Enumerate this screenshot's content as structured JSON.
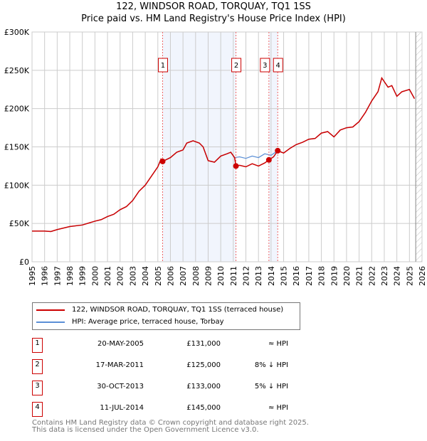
{
  "title": "122, WINDSOR ROAD, TORQUAY, TQ1 1SS",
  "subtitle": "Price paid vs. HM Land Registry's House Price Index (HPI)",
  "chart_data": {
    "type": "line",
    "title": "122, WINDSOR ROAD, TORQUAY, TQ1 1SS — Price paid vs. HM Land Registry's House Price Index (HPI)",
    "xlim": [
      1995,
      2026
    ],
    "ylim": [
      0,
      300000
    ],
    "y_ticks": [
      {
        "v": 0,
        "label": "£0"
      },
      {
        "v": 50000,
        "label": "£50K"
      },
      {
        "v": 100000,
        "label": "£100K"
      },
      {
        "v": 150000,
        "label": "£150K"
      },
      {
        "v": 200000,
        "label": "£200K"
      },
      {
        "v": 250000,
        "label": "£250K"
      },
      {
        "v": 300000,
        "label": "£300K"
      }
    ],
    "x_ticks": [
      "1995",
      "1996",
      "1997",
      "1998",
      "1999",
      "2000",
      "2001",
      "2002",
      "2003",
      "2004",
      "2005",
      "2006",
      "2007",
      "2008",
      "2009",
      "2010",
      "2011",
      "2012",
      "2013",
      "2014",
      "2015",
      "2016",
      "2017",
      "2018",
      "2019",
      "2020",
      "2021",
      "2022",
      "2023",
      "2024",
      "2025",
      "2026"
    ],
    "grid": true,
    "shaded_ranges": [
      [
        2005.38,
        2011.21
      ],
      [
        2013.83,
        2014.53
      ]
    ],
    "future_hatch_from": 2025.5,
    "colors": {
      "property": "#cc0000",
      "hpi": "#5b8fd6"
    },
    "series": [
      {
        "name": "122, WINDSOR ROAD, TORQUAY, TQ1 1SS (terraced house)",
        "color": "#cc0000",
        "points": [
          [
            1995,
            40
          ],
          [
            1996,
            40
          ],
          [
            1996.5,
            39.5
          ],
          [
            1997,
            42
          ],
          [
            1998,
            46
          ],
          [
            1999,
            48
          ],
          [
            2000,
            53
          ],
          [
            2000.5,
            55
          ],
          [
            2001,
            59
          ],
          [
            2001.5,
            62
          ],
          [
            2002,
            68
          ],
          [
            2002.5,
            72
          ],
          [
            2003,
            80
          ],
          [
            2003.5,
            92
          ],
          [
            2004,
            100
          ],
          [
            2004.5,
            112
          ],
          [
            2005,
            124
          ],
          [
            2005.25,
            134
          ],
          [
            2005.38,
            131
          ],
          [
            2006,
            136
          ],
          [
            2006.5,
            143
          ],
          [
            2007,
            146
          ],
          [
            2007.3,
            155
          ],
          [
            2007.8,
            158
          ],
          [
            2008.3,
            155
          ],
          [
            2008.6,
            150
          ],
          [
            2009,
            132
          ],
          [
            2009.5,
            130
          ],
          [
            2010,
            138
          ],
          [
            2010.5,
            141
          ],
          [
            2010.8,
            143
          ],
          [
            2011.1,
            136
          ],
          [
            2011.21,
            125
          ],
          [
            2011.5,
            126
          ],
          [
            2012,
            124
          ],
          [
            2012.5,
            128
          ],
          [
            2013,
            125
          ],
          [
            2013.5,
            129
          ],
          [
            2013.83,
            133
          ],
          [
            2014.2,
            137
          ],
          [
            2014.53,
            145
          ],
          [
            2015,
            142
          ],
          [
            2015.5,
            148
          ],
          [
            2016,
            153
          ],
          [
            2016.5,
            156
          ],
          [
            2017,
            160
          ],
          [
            2017.5,
            161
          ],
          [
            2018,
            168
          ],
          [
            2018.5,
            170
          ],
          [
            2019,
            163
          ],
          [
            2019.5,
            172
          ],
          [
            2020,
            175
          ],
          [
            2020.5,
            176
          ],
          [
            2021,
            183
          ],
          [
            2021.5,
            195
          ],
          [
            2022,
            210
          ],
          [
            2022.5,
            222
          ],
          [
            2022.8,
            240
          ],
          [
            2023.3,
            228
          ],
          [
            2023.6,
            230
          ],
          [
            2024,
            216
          ],
          [
            2024.4,
            222
          ],
          [
            2025,
            225
          ],
          [
            2025.4,
            213
          ]
        ]
      },
      {
        "name": "HPI: Average price, terraced house, Torbay",
        "color": "#5b8fd6",
        "points": [
          [
            1995,
            40
          ],
          [
            1996,
            40
          ],
          [
            1996.5,
            39.5
          ],
          [
            1997,
            42
          ],
          [
            1998,
            46
          ],
          [
            1999,
            48
          ],
          [
            2000,
            53
          ],
          [
            2000.5,
            55
          ],
          [
            2001,
            59
          ],
          [
            2001.5,
            62
          ],
          [
            2002,
            68
          ],
          [
            2002.5,
            72
          ],
          [
            2003,
            80
          ],
          [
            2003.5,
            92
          ],
          [
            2004,
            100
          ],
          [
            2004.5,
            112
          ],
          [
            2005,
            124
          ],
          [
            2005.25,
            134
          ],
          [
            2005.38,
            131
          ],
          [
            2006,
            136
          ],
          [
            2006.5,
            143
          ],
          [
            2007,
            146
          ],
          [
            2007.3,
            155
          ],
          [
            2007.8,
            158
          ],
          [
            2008.3,
            155
          ],
          [
            2008.6,
            150
          ],
          [
            2009,
            132
          ],
          [
            2009.5,
            130
          ],
          [
            2010,
            138
          ],
          [
            2010.5,
            141
          ],
          [
            2010.8,
            143
          ],
          [
            2011.1,
            136
          ],
          [
            2011.5,
            137
          ],
          [
            2012,
            135
          ],
          [
            2012.5,
            138
          ],
          [
            2013,
            136
          ],
          [
            2013.5,
            141
          ],
          [
            2014,
            139
          ],
          [
            2014.53,
            145
          ],
          [
            2015,
            142
          ],
          [
            2015.5,
            148
          ],
          [
            2016,
            153
          ],
          [
            2016.5,
            156
          ],
          [
            2017,
            160
          ],
          [
            2017.5,
            161
          ],
          [
            2018,
            168
          ],
          [
            2018.5,
            170
          ],
          [
            2019,
            163
          ],
          [
            2019.5,
            172
          ],
          [
            2020,
            175
          ],
          [
            2020.5,
            176
          ],
          [
            2021,
            183
          ],
          [
            2021.5,
            195
          ],
          [
            2022,
            210
          ],
          [
            2022.5,
            222
          ],
          [
            2022.8,
            240
          ],
          [
            2023.3,
            228
          ],
          [
            2023.6,
            230
          ],
          [
            2024,
            216
          ],
          [
            2024.4,
            222
          ],
          [
            2025,
            225
          ],
          [
            2025.4,
            213
          ]
        ]
      }
    ],
    "sales": [
      {
        "n": "1",
        "x": 2005.38,
        "y": 131
      },
      {
        "n": "2",
        "x": 2011.21,
        "y": 125
      },
      {
        "n": "3",
        "x": 2013.83,
        "y": 133
      },
      {
        "n": "4",
        "x": 2014.53,
        "y": 145
      }
    ]
  },
  "legend": {
    "property": "122, WINDSOR ROAD, TORQUAY, TQ1 1SS (terraced house)",
    "hpi": "HPI: Average price, terraced house, Torbay"
  },
  "sales_table": [
    {
      "n": "1",
      "date": "20-MAY-2005",
      "price": "£131,000",
      "rel": "≈ HPI"
    },
    {
      "n": "2",
      "date": "17-MAR-2011",
      "price": "£125,000",
      "rel": "8% ↓ HPI"
    },
    {
      "n": "3",
      "date": "30-OCT-2013",
      "price": "£133,000",
      "rel": "5% ↓ HPI"
    },
    {
      "n": "4",
      "date": "11-JUL-2014",
      "price": "£145,000",
      "rel": "≈ HPI"
    }
  ],
  "footer": [
    "Contains HM Land Registry data © Crown copyright and database right 2025.",
    "This data is licensed under the Open Government Licence v3.0."
  ]
}
